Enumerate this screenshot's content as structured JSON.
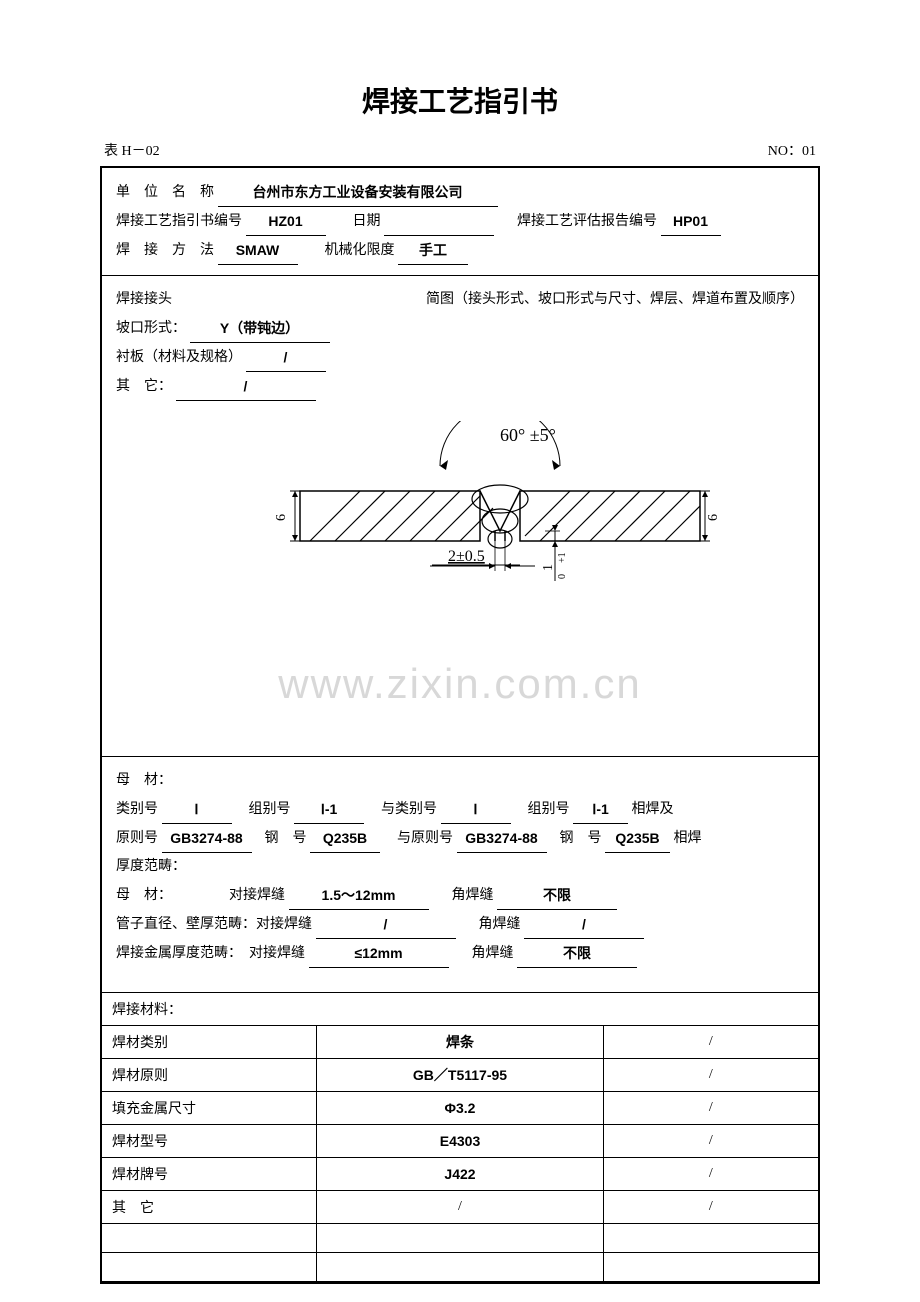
{
  "title": "焊接工艺指引书",
  "top": {
    "left": "表 H－02",
    "right": "NO：01"
  },
  "header": {
    "org_label": "单　位　名　称",
    "org_value": "台州市东方工业设备安装有限公司",
    "wps_no_label": "焊接工艺指引书编号",
    "wps_no_value": "HZ01",
    "date_label": "日期",
    "date_value": "",
    "pqr_no_label": "焊接工艺评估报告编号",
    "pqr_no_value": "HP01",
    "method_label": "焊　接　方　法",
    "method_value": "SMAW",
    "mech_label": "机械化限度",
    "mech_value": "手工"
  },
  "joint": {
    "title": "焊接接头",
    "diagram_label": "简图（接头形式、坡口形式与尺寸、焊层、焊道布置及顺序）",
    "groove_label": "坡口形式：",
    "groove_value": "Y（带钝边）",
    "backing_label": "衬板（材料及规格）",
    "backing_value": "/",
    "other_label": "其　它：",
    "other_value": "/"
  },
  "diagram": {
    "angle": "60° ±5°",
    "gap": "2±0.5",
    "thickness": "6",
    "root_face": "1",
    "root_tol_plus": "+1",
    "root_tol_minus": "0",
    "hatch_color": "#000000",
    "line_color": "#000000",
    "bg": "#ffffff"
  },
  "watermark": "www.zixin.com.cn",
  "base": {
    "title": "母　材：",
    "class_label": "类别号",
    "class1": "Ⅰ",
    "group_label": "组别号",
    "group1": "Ⅰ-1",
    "with_class_label": "与类别号",
    "class2": "Ⅰ",
    "group2": "Ⅰ-1",
    "weld_with": "相焊及",
    "std_label": "原则号",
    "std1": "GB3274-88",
    "steel_label": "钢　号",
    "steel1": "Q235B",
    "with_std_label": "与原则号",
    "std2": "GB3274-88",
    "steel2": "Q235B",
    "weld_with2": "相焊",
    "thick_title": "厚度范畴：",
    "base_label": "母　材：",
    "butt_label": "对接焊缝",
    "butt1": "1.5～12mm",
    "fillet_label": "角焊缝",
    "fillet1": "不限",
    "pipe_label": "管子直径、壁厚范畴：对接焊缝",
    "pipe_butt": "/",
    "pipe_fillet": "/",
    "weldmetal_label": "焊接金属厚度范畴：　对接焊缝",
    "wm_butt": "≤12mm",
    "wm_fillet": "不限"
  },
  "materials": {
    "section_title": "焊接材料：",
    "rows": [
      {
        "label": "焊材类别",
        "c1": "焊条",
        "c2": "/",
        "c1_bold": true
      },
      {
        "label": "焊材原则",
        "c1": "GB／T5117-95",
        "c2": "/",
        "c1_bold": true
      },
      {
        "label": "填充金属尺寸",
        "c1": "Φ3.2",
        "c2": "/",
        "c1_bold": true
      },
      {
        "label": "焊材型号",
        "c1": "E4303",
        "c2": "/",
        "c1_bold": true
      },
      {
        "label": "焊材牌号",
        "c1": "J422",
        "c2": "/",
        "c1_bold": true
      },
      {
        "label": "其　它",
        "c1": "/",
        "c2": "/",
        "c1_bold": false
      },
      {
        "label": "",
        "c1": "",
        "c2": "",
        "c1_bold": false
      },
      {
        "label": "",
        "c1": "",
        "c2": "",
        "c1_bold": false
      }
    ],
    "col_widths": [
      "30%",
      "40%",
      "30%"
    ]
  }
}
